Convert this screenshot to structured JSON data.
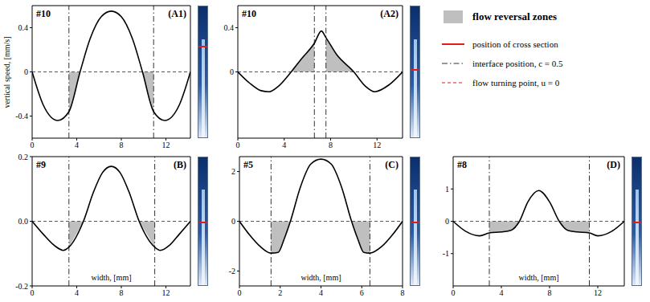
{
  "chart_data": [
    {
      "type": "line",
      "title": "#10",
      "panel_label": "(A1)",
      "ylabel": "vertical speed, [mm/s]",
      "color": "#000000",
      "x": [
        0,
        1,
        2.3,
        3.3,
        4.3,
        5.2,
        6.2,
        7.1,
        8,
        9,
        9.9,
        10.9,
        11.9,
        13.2,
        14.2
      ],
      "values": [
        0,
        -0.3,
        -0.44,
        -0.36,
        0,
        0.3,
        0.5,
        0.55,
        0.5,
        0.3,
        0,
        -0.36,
        -0.44,
        -0.3,
        0
      ],
      "xlim": [
        0,
        14.2
      ],
      "xticks": [
        0,
        4,
        8,
        12
      ],
      "ylim": [
        -0.6,
        0.6
      ],
      "yticks": [
        -0.4,
        0,
        0.4
      ],
      "interface_x": [
        3.3,
        10.9
      ],
      "flow_reversal_zones": [
        [
          3.3,
          4.3
        ],
        [
          9.9,
          10.9
        ]
      ]
    },
    {
      "type": "line",
      "title": "#10",
      "panel_label": "(A2)",
      "color": "#000000",
      "x": [
        0,
        1,
        2,
        2.7,
        3.5,
        4.6,
        5.5,
        6.6,
        7.2,
        7.6,
        8.5,
        10,
        11,
        11.8,
        13,
        14.2
      ],
      "values": [
        0,
        -0.1,
        -0.17,
        -0.18,
        -0.13,
        0,
        0.12,
        0.26,
        0.37,
        0.31,
        0.16,
        0,
        -0.13,
        -0.18,
        -0.12,
        0
      ],
      "xlim": [
        0,
        14.2
      ],
      "xticks": [
        0,
        4,
        8,
        12
      ],
      "ylim": [
        -0.6,
        0.6
      ],
      "yticks": [
        0,
        0.4
      ],
      "interface_x": [
        6.6,
        7.6
      ],
      "flow_reversal_zones": [
        [
          4.6,
          6.6
        ],
        [
          7.6,
          10
        ]
      ]
    },
    {
      "type": "line",
      "title": "#9",
      "panel_label": "(B)",
      "xlabel": "width, [mm]",
      "color": "#000000",
      "x": [
        0,
        1,
        2,
        2.8,
        3.3,
        4.6,
        5.5,
        6.3,
        7.1,
        7.9,
        8.7,
        9.6,
        11,
        11.5,
        12.3,
        13.2,
        14.2
      ],
      "values": [
        0,
        -0.04,
        -0.075,
        -0.09,
        -0.08,
        0,
        0.09,
        0.15,
        0.17,
        0.15,
        0.09,
        0,
        -0.08,
        -0.09,
        -0.075,
        -0.04,
        0
      ],
      "xlim": [
        0,
        14.2
      ],
      "xticks": [
        0,
        4,
        8,
        12
      ],
      "ylim": [
        -0.2,
        0.2
      ],
      "yticks": [
        -0.2,
        {
          "value": 0,
          "label": "0.0"
        },
        0.2
      ],
      "interface_x": [
        3.3,
        11
      ],
      "flow_reversal_zones": [
        [
          3.3,
          4.6
        ],
        [
          9.6,
          11
        ]
      ]
    },
    {
      "type": "line",
      "title": "#5",
      "panel_label": "(C)",
      "xlabel": "width, [mm]",
      "color": "#000000",
      "x": [
        0,
        0.5,
        1,
        1.55,
        1.9,
        2.2,
        2.5,
        3,
        3.5,
        4,
        4.5,
        5,
        5.5,
        5.8,
        6.1,
        6.4,
        7,
        7.5,
        8
      ],
      "values": [
        0,
        -0.55,
        -1.0,
        -1.28,
        -1.25,
        -0.7,
        0,
        1.4,
        2.3,
        2.5,
        2.3,
        1.4,
        0,
        -0.7,
        -1.25,
        -1.28,
        -1.0,
        -0.55,
        0
      ],
      "xlim": [
        0,
        8
      ],
      "xticks": [
        0,
        2,
        4,
        6,
        8
      ],
      "ylim": [
        -2.6,
        2.6
      ],
      "yticks": [
        -2,
        0,
        2
      ],
      "interface_x": [
        1.55,
        6.4
      ],
      "flow_reversal_zones": [
        [
          1.55,
          2.5
        ],
        [
          5.5,
          6.4
        ]
      ]
    },
    {
      "type": "line",
      "title": "#8",
      "panel_label": "(D)",
      "xlabel": "width, [mm]",
      "color": "#000000",
      "x": [
        0,
        1,
        2.2,
        3,
        4,
        4.8,
        5.5,
        6.2,
        7.1,
        8,
        8.8,
        9.5,
        10.3,
        11.3,
        12,
        13.2,
        14.2
      ],
      "values": [
        0,
        -0.3,
        -0.45,
        -0.36,
        -0.33,
        -0.28,
        0,
        0.6,
        0.95,
        0.6,
        0,
        -0.28,
        -0.33,
        -0.36,
        -0.45,
        -0.3,
        0
      ],
      "xlim": [
        0,
        14.2
      ],
      "xticks": [
        0,
        4,
        8,
        12
      ],
      "ylim": [
        -2,
        2
      ],
      "yticks": [
        -1,
        0,
        1
      ],
      "interface_x": [
        3,
        11.3
      ],
      "flow_reversal_zones": [
        [
          3,
          5.5
        ],
        [
          8.8,
          11.3
        ]
      ]
    }
  ],
  "legend_items": [
    {
      "label": "flow reversal zones",
      "color": "#bfbfbf",
      "marker": "square"
    },
    {
      "label": "position of cross section",
      "color": "#e41a1c",
      "line_style": "solid"
    },
    {
      "label": "interface position, c = 0.5",
      "color": "#333333",
      "line_style": "dashdot"
    },
    {
      "label": "flow turning point, u = 0",
      "color": "#e41a1c",
      "line_style": "dashed"
    }
  ]
}
